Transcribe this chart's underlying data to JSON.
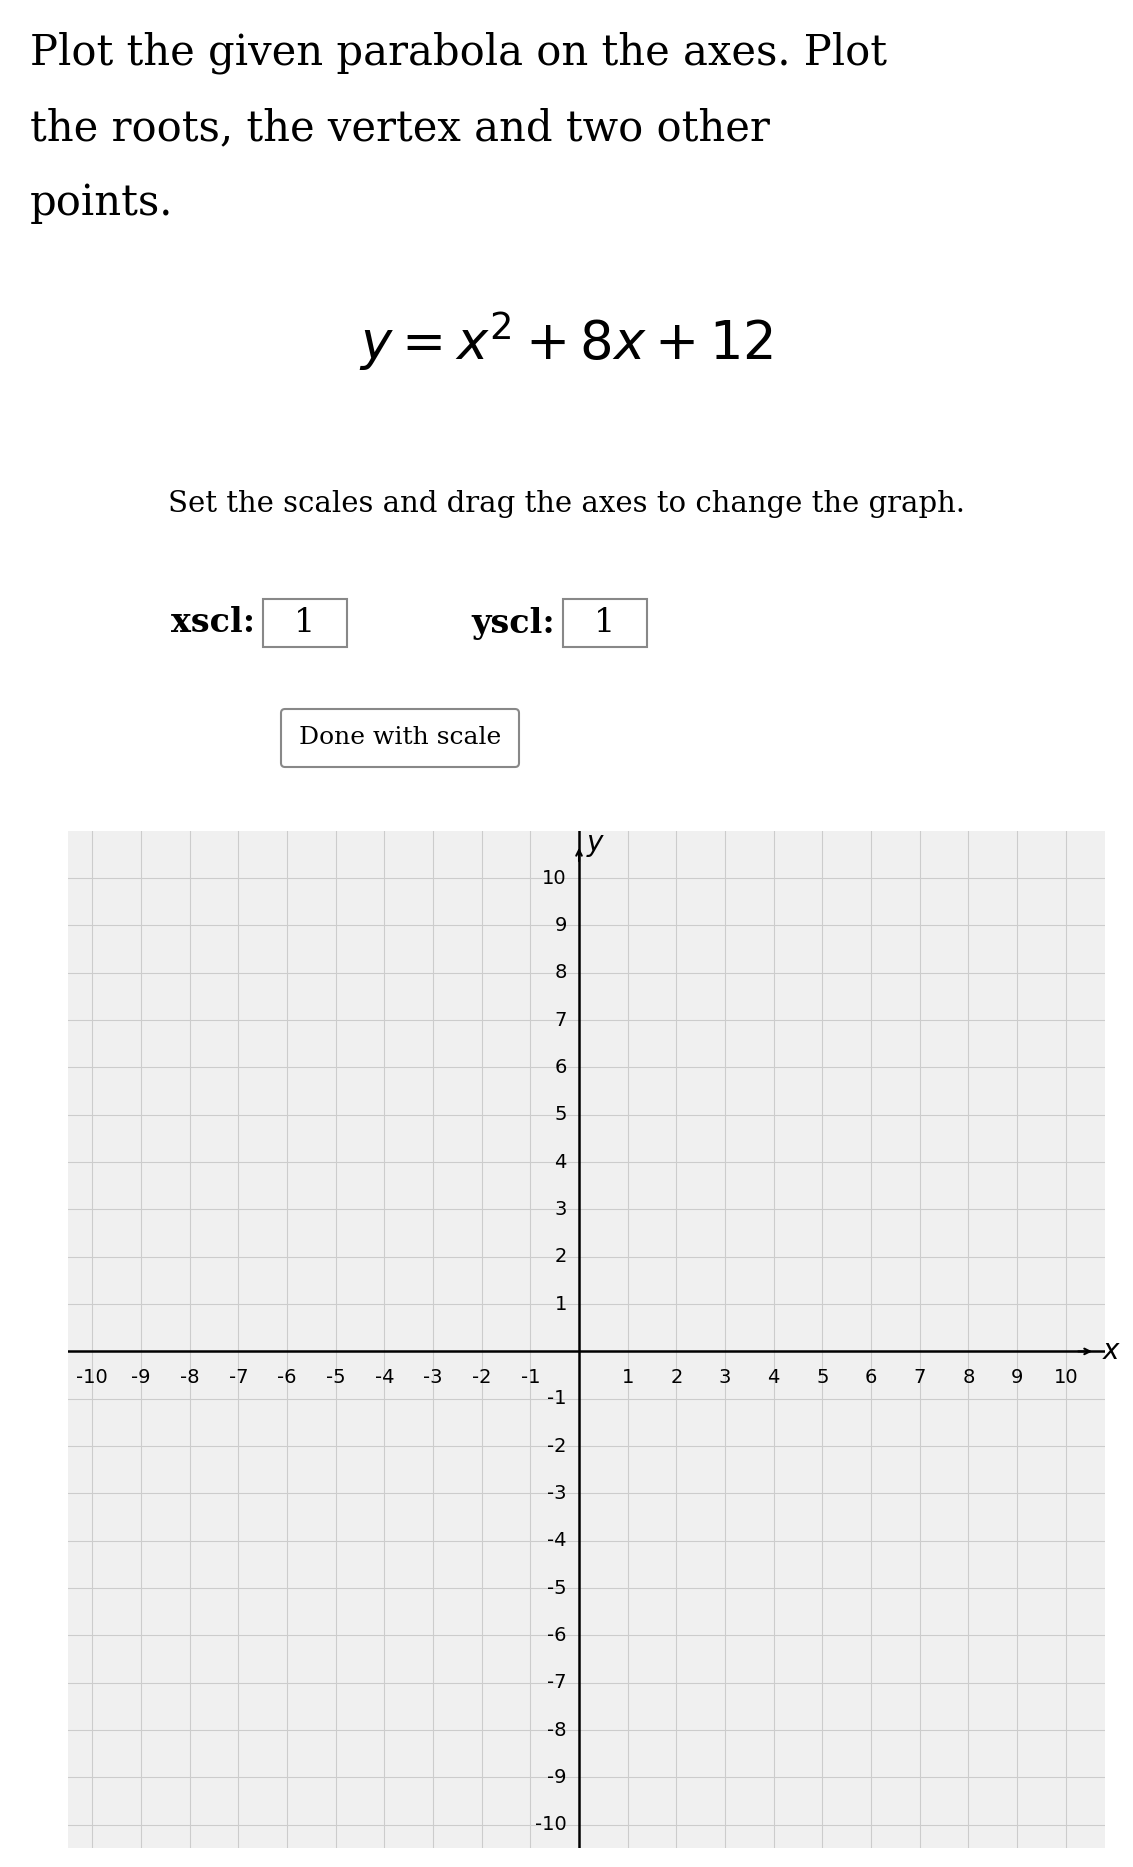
{
  "title_lines": [
    "Plot the given parabola on the axes. Plot",
    "the roots, the vertex and two other",
    "points."
  ],
  "equation_latex": "$y = x^2 + 8x + 12$",
  "subtitle": "Set the scales and drag the axes to change the graph.",
  "xscl_label": "xscl:",
  "xscl_value": "1",
  "yscl_label": "yscl:",
  "yscl_value": "1",
  "done_button": "Done with scale",
  "x_axis_label": "x",
  "y_axis_label": "y",
  "xlim": [
    -10.5,
    10.8
  ],
  "ylim": [
    -10.5,
    11.0
  ],
  "grid_color": "#cccccc",
  "axis_color": "#000000",
  "background_color": "#ffffff",
  "graph_bg_color": "#f0f0f0",
  "title_fontsize": 30,
  "equation_fontsize": 38,
  "subtitle_fontsize": 21,
  "xyscl_fontsize": 24,
  "done_fontsize": 18,
  "tick_fontsize": 14,
  "axis_label_fontsize": 20,
  "box_edge_color": "#888888",
  "done_box_edge_color": "#888888"
}
